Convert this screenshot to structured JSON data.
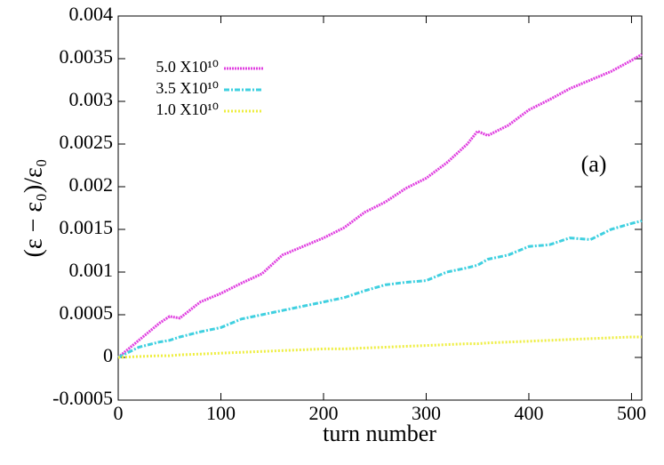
{
  "chart_data": {
    "type": "line",
    "ylabel": "(ε − ε₀)/ε₀",
    "xlabel": "turn number",
    "annotation": "(a)",
    "x": [
      0,
      20,
      40,
      50,
      60,
      80,
      100,
      120,
      140,
      160,
      180,
      200,
      220,
      240,
      260,
      280,
      300,
      320,
      340,
      350,
      360,
      380,
      400,
      420,
      440,
      460,
      480,
      500,
      510
    ],
    "series": [
      {
        "name": "5.0 X10¹⁰",
        "color": "#e040e0",
        "values": [
          0,
          0.0002,
          0.0004,
          0.00048,
          0.00046,
          0.00065,
          0.00075,
          0.00087,
          0.00098,
          0.0012,
          0.0013,
          0.0014,
          0.00152,
          0.0017,
          0.00182,
          0.00198,
          0.0021,
          0.00228,
          0.0025,
          0.00265,
          0.0026,
          0.00272,
          0.0029,
          0.00302,
          0.00315,
          0.00325,
          0.00335,
          0.00348,
          0.00355
        ]
      },
      {
        "name": "3.5 X10¹⁰",
        "color": "#40d0e0",
        "values": [
          0,
          0.00012,
          0.00018,
          0.0002,
          0.00024,
          0.0003,
          0.00035,
          0.00045,
          0.0005,
          0.00055,
          0.0006,
          0.00065,
          0.0007,
          0.00078,
          0.00085,
          0.00088,
          0.0009,
          0.001,
          0.00105,
          0.00108,
          0.00115,
          0.0012,
          0.0013,
          0.00132,
          0.0014,
          0.00138,
          0.0015,
          0.00157,
          0.0016
        ]
      },
      {
        "name": "1.0 X10¹⁰",
        "color": "#eeee40",
        "values": [
          0,
          1e-05,
          2e-05,
          2e-05,
          3e-05,
          4e-05,
          5e-05,
          6e-05,
          7e-05,
          8e-05,
          9e-05,
          0.0001,
          0.0001,
          0.00011,
          0.00012,
          0.00013,
          0.00014,
          0.00015,
          0.00016,
          0.00016,
          0.00017,
          0.00018,
          0.00019,
          0.0002,
          0.00021,
          0.00022,
          0.00023,
          0.00024,
          0.00024
        ]
      }
    ],
    "xlim": [
      0,
      510
    ],
    "xticks": [
      0,
      100,
      200,
      300,
      400,
      500
    ],
    "ylim": [
      -0.0005,
      0.004
    ],
    "yticks": [
      -0.0005,
      0,
      0.0005,
      0.001,
      0.0015,
      0.002,
      0.0025,
      0.003,
      0.0035,
      0.004
    ]
  }
}
